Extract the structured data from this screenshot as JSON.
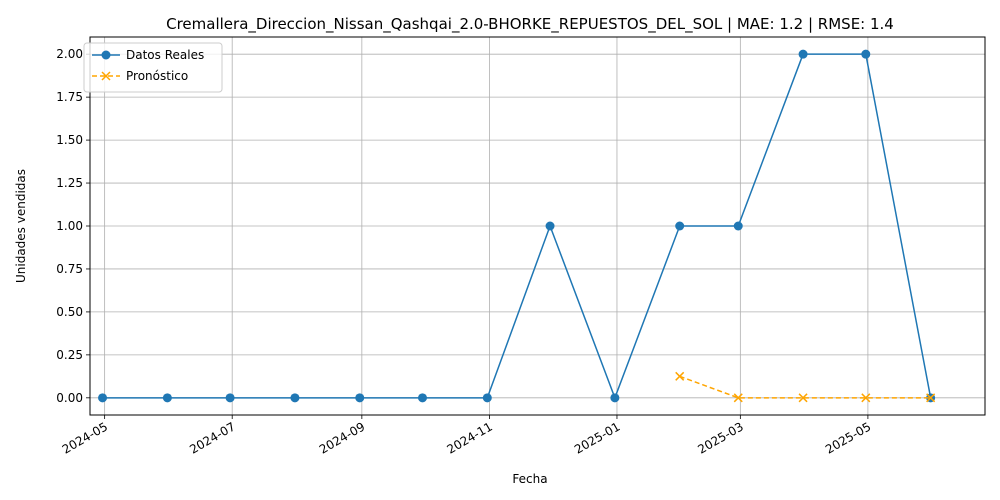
{
  "chart_data": {
    "type": "line",
    "title": "Cremallera_Direccion_Nissan_Qashqai_2.0-BHORKE_REPUESTOS_DEL_SOL | MAE: 1.2 | RMSE: 1.4",
    "xlabel": "Fecha",
    "ylabel": "Unidades vendidas",
    "x_ticks": [
      "2024-05",
      "2024-07",
      "2024-09",
      "2024-11",
      "2025-01",
      "2025-03",
      "2025-05"
    ],
    "y_ticks": [
      "0.00",
      "0.25",
      "0.50",
      "0.75",
      "1.00",
      "1.25",
      "1.50",
      "1.75",
      "2.00"
    ],
    "xlim": [
      "2024-04-24",
      "2025-06-26"
    ],
    "ylim": [
      -0.1,
      2.1
    ],
    "grid": true,
    "legend_position": "top-left",
    "series": [
      {
        "name": "Datos Reales",
        "color": "#1f77b4",
        "style": "solid",
        "marker": "circle",
        "x": [
          "2024-04-30",
          "2024-05-31",
          "2024-06-30",
          "2024-07-31",
          "2024-08-31",
          "2024-09-30",
          "2024-10-31",
          "2024-11-30",
          "2024-12-31",
          "2025-01-31",
          "2025-02-28",
          "2025-03-31",
          "2025-04-30",
          "2025-05-31"
        ],
        "y": [
          0,
          0,
          0,
          0,
          0,
          0,
          0,
          1,
          0,
          1,
          1,
          2,
          2,
          0
        ]
      },
      {
        "name": "Pronóstico",
        "color": "#ffa500",
        "style": "dashed",
        "marker": "x",
        "x": [
          "2025-01-31",
          "2025-02-28",
          "2025-03-31",
          "2025-04-30",
          "2025-05-31"
        ],
        "y": [
          0.125,
          0,
          0,
          0,
          0
        ]
      }
    ]
  }
}
